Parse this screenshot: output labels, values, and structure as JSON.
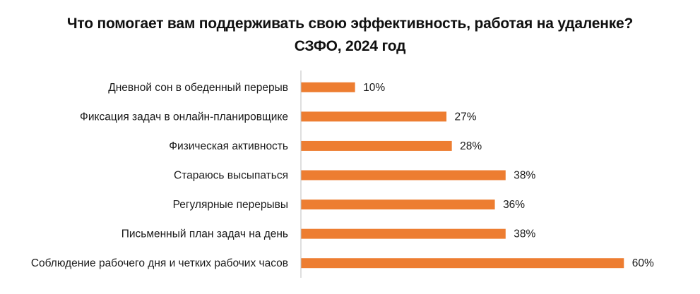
{
  "chart_data": {
    "type": "bar",
    "orientation": "horizontal",
    "title": "Что помогает вам поддерживать свою эффективность, работая на удаленке? СЗФО, 2024 год",
    "categories": [
      "Дневной сон в  обеденный перерыв",
      "Фиксация задач в онлайн-планировщике",
      "Физическая активность",
      "Стараюсь высыпаться",
      "Регулярные перерывы",
      "Письменный план задач на день",
      "Соблюдение рабочего дня и четких рабочих часов"
    ],
    "values": [
      10,
      27,
      28,
      38,
      36,
      38,
      60
    ],
    "value_labels": [
      "10%",
      "27%",
      "28%",
      "38%",
      "36%",
      "38%",
      "60%"
    ],
    "unit": "%",
    "xlim": [
      0,
      62
    ],
    "grid": false,
    "legend": "none",
    "colors": {
      "bar": "#ED7D31",
      "axis": "#BFBFBF",
      "text": "#1A1A1A"
    }
  }
}
